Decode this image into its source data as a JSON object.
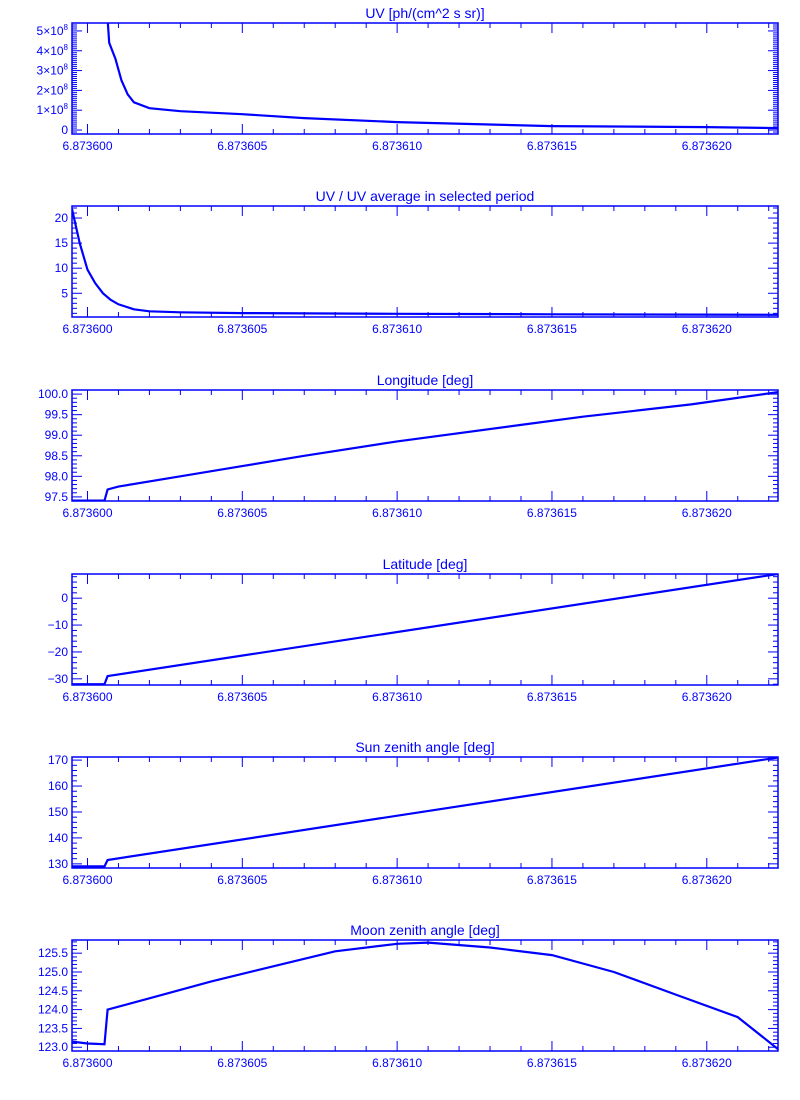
{
  "colors": {
    "ink": "#0000ff",
    "background": "#ffffff"
  },
  "chart_data": [
    {
      "type": "line",
      "title": "UV [ph/(cm^2 s sr)]",
      "xlabel": "",
      "ylabel": "",
      "xlim": [
        6.8735995,
        6.8736223
      ],
      "xticks": [
        "6.873600",
        "6.873605",
        "6.873610",
        "6.873615",
        "6.873620"
      ],
      "xtick_values": [
        6.8736,
        6.873605,
        6.87361,
        6.873615,
        6.87362
      ],
      "ylim": [
        -20000000,
        540000000
      ],
      "yticks": [
        0,
        100000000,
        200000000,
        300000000,
        400000000,
        500000000
      ],
      "ytick_labels": [
        "0",
        "1×10^8",
        "2×10^8",
        "3×10^8",
        "4×10^8",
        "5×10^8"
      ],
      "y_minor_per_major": 10,
      "x": [
        6.87360065,
        6.8736007,
        6.8736009,
        6.8736011,
        6.8736013,
        6.8736015,
        6.873602,
        6.873603,
        6.873605,
        6.873607,
        6.87361,
        6.873615,
        6.87362,
        6.8736223
      ],
      "y": [
        560000000,
        440000000,
        360000000,
        250000000,
        180000000,
        140000000,
        110000000,
        95000000,
        80000000,
        60000000,
        40000000,
        20000000,
        15000000,
        10000000
      ]
    },
    {
      "type": "line",
      "title": "UV / UV average in selected period",
      "xlabel": "",
      "ylabel": "",
      "xlim": [
        6.8735995,
        6.8736223
      ],
      "xticks": [
        "6.873600",
        "6.873605",
        "6.873610",
        "6.873615",
        "6.873620"
      ],
      "xtick_values": [
        6.8736,
        6.873605,
        6.87361,
        6.873615,
        6.87362
      ],
      "ylim": [
        0.27,
        22.4
      ],
      "yticks": [
        5,
        10,
        15,
        20
      ],
      "ytick_labels": [
        "5",
        "10",
        "15",
        "20"
      ],
      "y_minor_per_major": 5,
      "x": [
        6.8735995,
        6.87359975,
        6.8736,
        6.87360025,
        6.8736005,
        6.87360075,
        6.873601,
        6.8736015,
        6.873602,
        6.873603,
        6.873605,
        6.87361,
        6.873615,
        6.8736223
      ],
      "y": [
        21.8,
        15,
        9.7,
        7,
        5,
        3.7,
        2.8,
        1.8,
        1.4,
        1.2,
        1.05,
        0.9,
        0.8,
        0.7
      ]
    },
    {
      "type": "line",
      "title": "Longitude [deg]",
      "xlabel": "",
      "ylabel": "",
      "xlim": [
        6.8735995,
        6.8736223
      ],
      "xticks": [
        "6.873600",
        "6.873605",
        "6.873610",
        "6.873615",
        "6.873620"
      ],
      "xtick_values": [
        6.8736,
        6.873605,
        6.87361,
        6.873615,
        6.87362
      ],
      "ylim": [
        97.4,
        100.1
      ],
      "yticks": [
        97.5,
        98.0,
        98.5,
        99.0,
        99.5,
        100.0
      ],
      "ytick_labels": [
        "97.5",
        "98.0",
        "98.5",
        "99.0",
        "99.5",
        "100.0"
      ],
      "y_minor_per_major": 5,
      "x": [
        6.8735995,
        6.87360055,
        6.87360065,
        6.873601,
        6.873603,
        6.873605,
        6.873607,
        6.87361,
        6.873614,
        6.873616,
        6.8736195,
        6.8736223
      ],
      "y": [
        97.41,
        97.41,
        97.68,
        97.75,
        98.0,
        98.25,
        98.5,
        98.85,
        99.25,
        99.45,
        99.75,
        100.05
      ]
    },
    {
      "type": "line",
      "title": "Latitude [deg]",
      "xlabel": "",
      "ylabel": "",
      "xlim": [
        6.8735995,
        6.8736223
      ],
      "xticks": [
        "6.873600",
        "6.873605",
        "6.873610",
        "6.873615",
        "6.873620"
      ],
      "xtick_values": [
        6.8736,
        6.873605,
        6.87361,
        6.873615,
        6.87362
      ],
      "ylim": [
        -32.3,
        9
      ],
      "yticks": [
        -30,
        -20,
        -10,
        0
      ],
      "ytick_labels": [
        "−30",
        "−20",
        "−10",
        "0"
      ],
      "y_minor_per_major": 5,
      "x": [
        6.8735995,
        6.87360055,
        6.87360065,
        6.8736223
      ],
      "y": [
        -32,
        -32,
        -29,
        9
      ]
    },
    {
      "type": "line",
      "title": "Sun zenith angle [deg]",
      "xlabel": "",
      "ylabel": "",
      "xlim": [
        6.8735995,
        6.8736223
      ],
      "xticks": [
        "6.873600",
        "6.873605",
        "6.873610",
        "6.873615",
        "6.873620"
      ],
      "xtick_values": [
        6.8736,
        6.873605,
        6.87361,
        6.873615,
        6.87362
      ],
      "ylim": [
        128.4,
        171.2
      ],
      "yticks": [
        130,
        140,
        150,
        160,
        170
      ],
      "ytick_labels": [
        "130",
        "140",
        "150",
        "160",
        "170"
      ],
      "y_minor_per_major": 5,
      "x": [
        6.8735995,
        6.87360055,
        6.87360065,
        6.8736223
      ],
      "y": [
        129,
        129,
        131.5,
        171
      ]
    },
    {
      "type": "line",
      "title": "Moon zenith angle [deg]",
      "xlabel": "",
      "ylabel": "",
      "xlim": [
        6.8735995,
        6.8736223
      ],
      "xticks": [
        "6.873600",
        "6.873605",
        "6.873610",
        "6.873615",
        "6.873620"
      ],
      "xtick_values": [
        6.8736,
        6.873605,
        6.87361,
        6.873615,
        6.87362
      ],
      "ylim": [
        122.9,
        125.85
      ],
      "yticks": [
        123.0,
        123.5,
        124.0,
        124.5,
        125.0,
        125.5
      ],
      "ytick_labels": [
        "123.0",
        "123.5",
        "124.0",
        "124.5",
        "125.0",
        "125.5"
      ],
      "y_minor_per_major": 5,
      "x": [
        6.8735995,
        6.8736,
        6.87360055,
        6.87360065,
        6.873602,
        6.873604,
        6.873606,
        6.873608,
        6.87361,
        6.873611,
        6.873613,
        6.873615,
        6.873617,
        6.873619,
        6.873621,
        6.8736223
      ],
      "y": [
        123.15,
        123.1,
        123.08,
        124.0,
        124.3,
        124.75,
        125.15,
        125.55,
        125.75,
        125.78,
        125.65,
        125.45,
        125.0,
        124.4,
        123.8,
        122.95
      ]
    }
  ]
}
